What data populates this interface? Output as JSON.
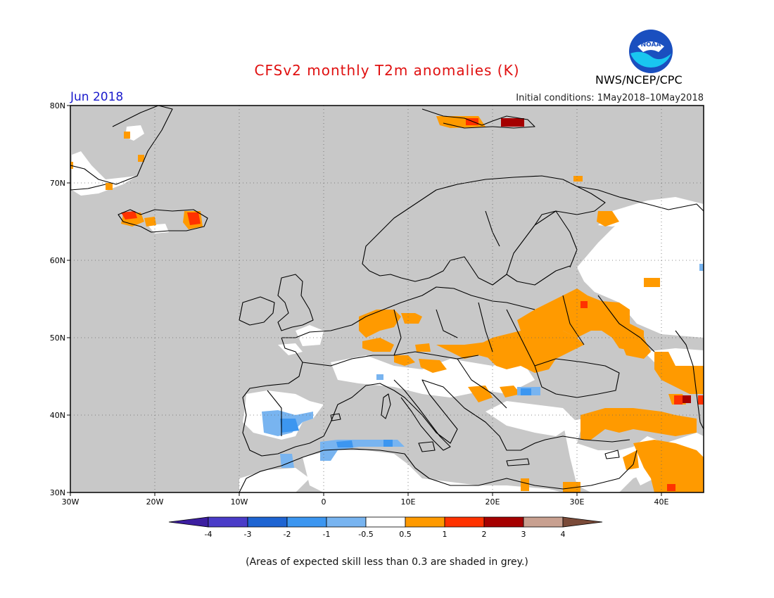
{
  "map": {
    "title": "CFSv2 monthly T2m anomalies (K)",
    "agency": "NWS/NCEP/CPC",
    "logo_text": "NOAA",
    "month": "Jun 2018",
    "initial_conditions": "Initial conditions: 1May2018–10May2018",
    "footnote": "(Areas of expected skill less than 0.3 are shaded in grey.)",
    "lon_labels": [
      "30W",
      "20W",
      "10W",
      "0",
      "10E",
      "20E",
      "30E",
      "40E"
    ],
    "lat_labels": [
      "80N",
      "70N",
      "60N",
      "50N",
      "40N",
      "30N"
    ],
    "extent": {
      "lon_min": -30,
      "lon_max": 45,
      "lat_min": 30,
      "lat_max": 80
    }
  },
  "legend": {
    "tick_labels": [
      "-4",
      "-3",
      "-2",
      "-1",
      "-0.5",
      "0.5",
      "1",
      "2",
      "3",
      "4"
    ],
    "colors": [
      "#3c1ea0",
      "#4a3cc8",
      "#1e64d2",
      "#3c96f0",
      "#78b4f0",
      "#ffffff",
      "#ff9a00",
      "#ff3200",
      "#a50000",
      "#c8a090",
      "#7a4a38"
    ]
  },
  "colors": {
    "grey_skill": "#c8c8c8",
    "warm1": "#ff9a00",
    "warm2": "#ff3200",
    "warm3": "#a50000",
    "cool1": "#78b4f0",
    "cool2": "#3c96f0",
    "title": "#e01010",
    "month": "#1a1acc"
  }
}
